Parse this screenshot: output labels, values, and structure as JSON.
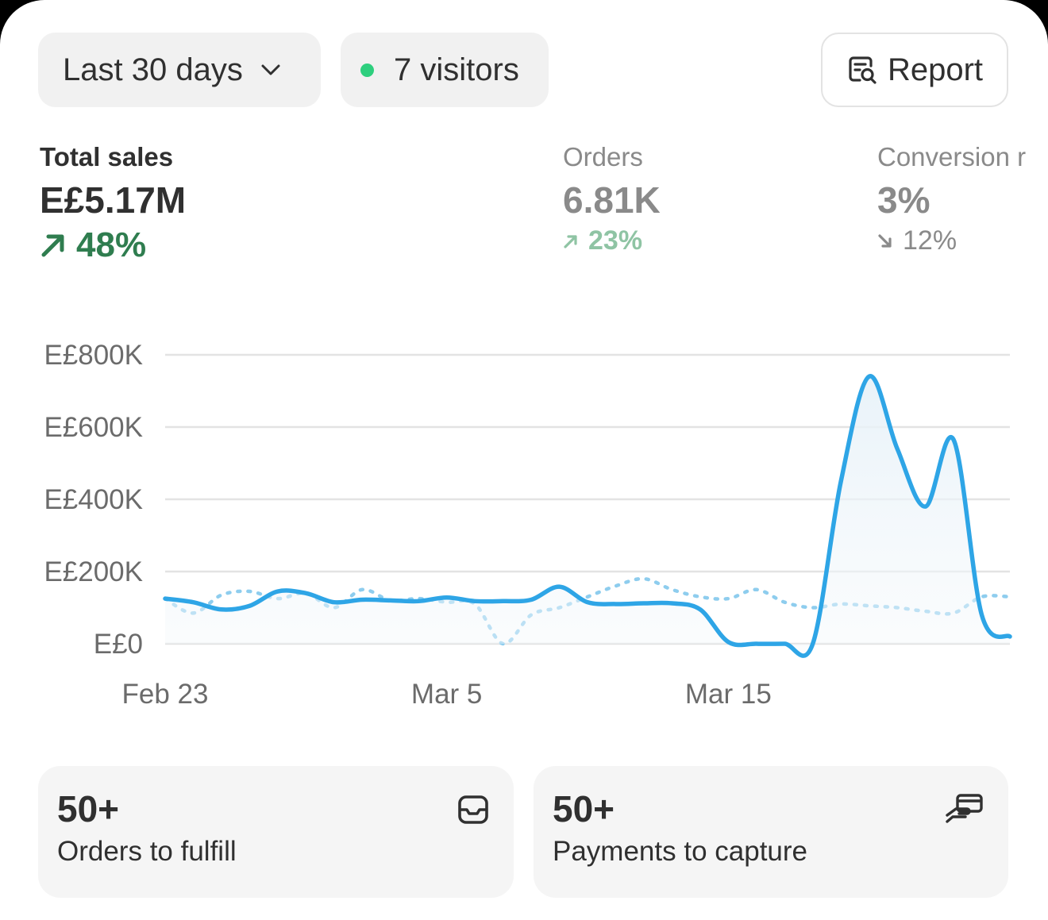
{
  "filters": {
    "date_range": "Last 30 days",
    "visitors": "7 visitors",
    "report_label": "Report",
    "live_dot_color": "#2ecf7e"
  },
  "metrics": [
    {
      "label": "Total sales",
      "value": "E£5.17M",
      "change": "48%",
      "direction": "up"
    },
    {
      "label": "Orders",
      "value": "6.81K",
      "change": "23%",
      "direction": "up"
    },
    {
      "label": "Conversion r",
      "value": "3%",
      "change": "12%",
      "direction": "down"
    }
  ],
  "chart_data": {
    "type": "line",
    "yticks": [
      "E£800K",
      "E£600K",
      "E£400K",
      "E£200K",
      "E£0"
    ],
    "ylim": [
      0,
      800000
    ],
    "xticks": [
      "Feb 23",
      "Mar 5",
      "Mar 15"
    ],
    "x": [
      "Feb 23",
      "Feb 24",
      "Feb 25",
      "Feb 26",
      "Feb 27",
      "Feb 28",
      "Mar 1",
      "Mar 2",
      "Mar 3",
      "Mar 4",
      "Mar 5",
      "Mar 6",
      "Mar 7",
      "Mar 8",
      "Mar 9",
      "Mar 10",
      "Mar 11",
      "Mar 12",
      "Mar 13",
      "Mar 14",
      "Mar 15",
      "Mar 16",
      "Mar 17",
      "Mar 18",
      "Mar 19",
      "Mar 20",
      "Mar 21",
      "Mar 22",
      "Mar 23",
      "Mar 24",
      "Mar 25"
    ],
    "grid": true,
    "series": [
      {
        "style": "solid",
        "color": "#2ea5e6",
        "values": [
          125000,
          115000,
          95000,
          105000,
          145000,
          140000,
          115000,
          122000,
          120000,
          118000,
          128000,
          118000,
          118000,
          122000,
          158000,
          115000,
          110000,
          112000,
          112000,
          95000,
          5000,
          0,
          0,
          0,
          450000,
          740000,
          540000,
          380000,
          565000,
          80000,
          20000
        ]
      },
      {
        "style": "dotted",
        "color": "#8ecdee",
        "values": [
          125000,
          85000,
          135000,
          145000,
          125000,
          140000,
          100000,
          150000,
          120000,
          125000,
          115000,
          110000,
          0,
          80000,
          100000,
          130000,
          160000,
          180000,
          150000,
          130000,
          125000,
          150000,
          115000,
          100000,
          110000,
          105000,
          100000,
          90000,
          85000,
          130000,
          130000
        ]
      }
    ]
  },
  "tiles": [
    {
      "count": "50+",
      "label": "Orders to fulfill",
      "icon": "inbox-icon"
    },
    {
      "count": "50+",
      "label": "Payments to capture",
      "icon": "hand-card-icon"
    }
  ]
}
